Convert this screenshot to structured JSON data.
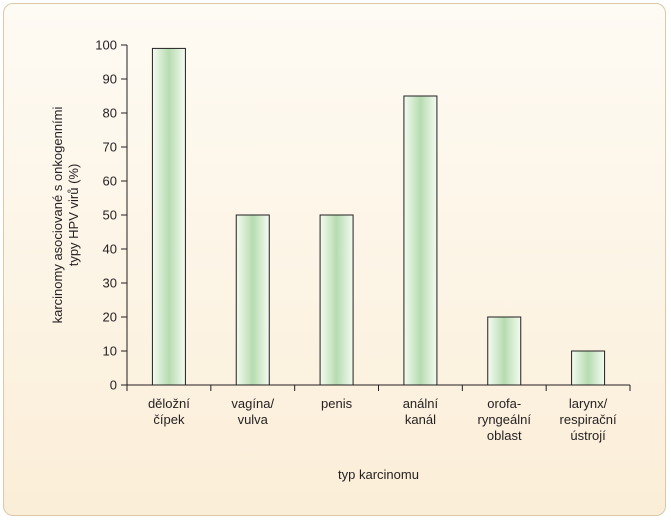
{
  "chart_data": {
    "type": "bar",
    "title": "",
    "xlabel": "typ karcinomu",
    "ylabel": [
      "karcinomy asociované s onkogenními",
      "typy HPV virů (%)"
    ],
    "ylim": [
      0,
      100
    ],
    "yticks": [
      0,
      10,
      20,
      30,
      40,
      50,
      60,
      70,
      80,
      90,
      100
    ],
    "grid": false,
    "categories": [
      [
        "děložní",
        "čípek"
      ],
      [
        "vagína/",
        "vulva"
      ],
      [
        "penis"
      ],
      [
        "anální",
        "kanál"
      ],
      [
        "orofa-",
        "ryngeální",
        "oblast"
      ],
      [
        "larynx/",
        "respirační",
        "ústrojí"
      ]
    ],
    "values": [
      99,
      50,
      50,
      85,
      20,
      10
    ],
    "colors": {
      "bar_edge": "#231f20",
      "bar_light": "#f4fbf1",
      "bar_mid": "#b6dcb0",
      "axis": "#231f20"
    }
  }
}
